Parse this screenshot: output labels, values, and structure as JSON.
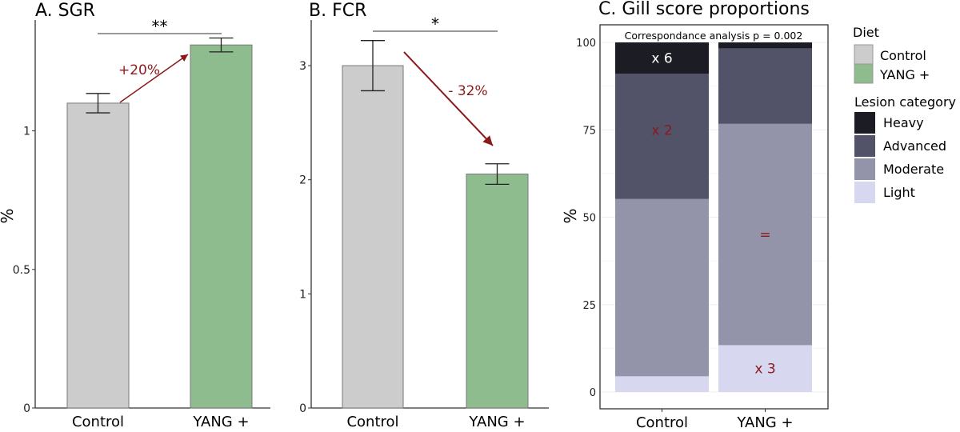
{
  "chart_data": [
    {
      "type": "bar",
      "title": "A. SGR",
      "ylabel": "%",
      "categories": [
        "Control",
        "YANG +"
      ],
      "values": [
        1.1,
        1.31
      ],
      "errors": [
        0.035,
        0.025
      ],
      "colors": [
        "#cccccc",
        "#8fbc8f"
      ],
      "ylim": [
        0,
        1.4
      ],
      "yticks": [
        0,
        0.5,
        1
      ],
      "ytick_labels": [
        "0",
        "0.5",
        "1"
      ],
      "significance": "**",
      "annotation": "+20%",
      "annotation_color": "#8b1a1a",
      "grid": false
    },
    {
      "type": "bar",
      "title": "B. FCR",
      "ylabel": "",
      "categories": [
        "Control",
        "YANG +"
      ],
      "values": [
        3.0,
        2.05
      ],
      "errors": [
        0.22,
        0.09
      ],
      "colors": [
        "#cccccc",
        "#8fbc8f"
      ],
      "ylim": [
        0,
        3.4
      ],
      "yticks": [
        0,
        1,
        2,
        3
      ],
      "ytick_labels": [
        "0",
        "1",
        "2",
        "3"
      ],
      "significance": "*",
      "annotation": "- 32%",
      "annotation_color": "#8b1a1a",
      "grid": false
    },
    {
      "type": "bar",
      "stacked": true,
      "title": "C. Gill score proportions",
      "subtitle": "Correspondance analysis p = 0.002",
      "ylabel": "%",
      "categories": [
        "Control",
        "YANG +"
      ],
      "ylim": [
        0,
        100
      ],
      "yticks": [
        0,
        25,
        50,
        75,
        100
      ],
      "ytick_labels": [
        "0",
        "25",
        "50",
        "75",
        "100"
      ],
      "grid": true,
      "series": [
        {
          "name": "Light",
          "values": [
            4.5,
            13.4
          ],
          "color": "#d8d7f0"
        },
        {
          "name": "Moderate",
          "values": [
            50.7,
            63.3
          ],
          "color": "#9393aa"
        },
        {
          "name": "Advanced",
          "values": [
            35.8,
            21.6
          ],
          "color": "#525268"
        },
        {
          "name": "Heavy",
          "values": [
            9.0,
            1.7
          ],
          "color": "#1c1c24"
        }
      ],
      "bar_labels": [
        {
          "series": "Heavy",
          "category": "Control",
          "text": "x 6",
          "color": "#ffffff"
        },
        {
          "series": "Advanced",
          "category": "Control",
          "text": "x 2",
          "color": "#8b1a1a"
        },
        {
          "series": "Moderate",
          "category": "YANG +",
          "text": "=",
          "color": "#8b1a1a"
        },
        {
          "series": "Light",
          "category": "YANG +",
          "text": "x 3",
          "color": "#8b1a1a"
        }
      ],
      "legend_placement": "right"
    }
  ],
  "legend": {
    "diet_title": "Diet",
    "diet": [
      {
        "label": "Control",
        "color": "#cccccc"
      },
      {
        "label": "YANG +",
        "color": "#8fbc8f"
      }
    ],
    "lesion_title": "Lesion category",
    "lesion": [
      {
        "label": "Heavy",
        "color": "#1c1c24"
      },
      {
        "label": "Advanced",
        "color": "#525268"
      },
      {
        "label": "Moderate",
        "color": "#9393aa"
      },
      {
        "label": "Light",
        "color": "#d8d7f0"
      }
    ]
  }
}
